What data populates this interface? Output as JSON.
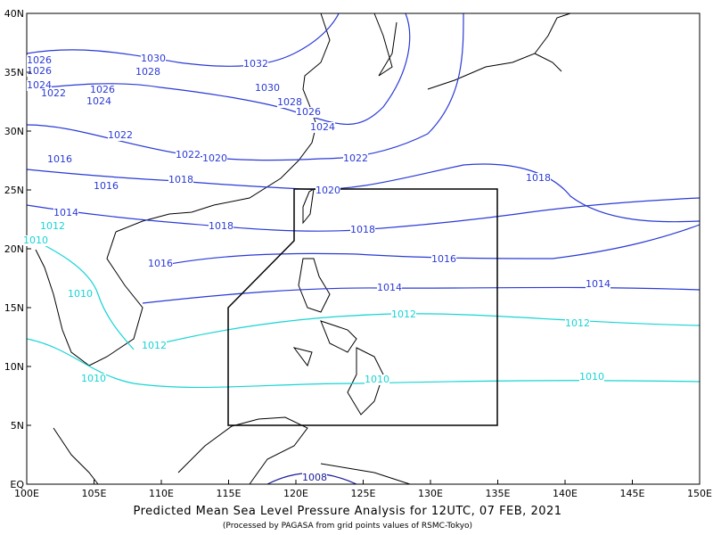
{
  "map": {
    "xlim": [
      100,
      150
    ],
    "xticks": [
      {
        "value": 100,
        "label": "100E"
      },
      {
        "value": 105,
        "label": "105E"
      },
      {
        "value": 110,
        "label": "110E"
      },
      {
        "value": 115,
        "label": "115E"
      },
      {
        "value": 120,
        "label": "120E"
      },
      {
        "value": 125,
        "label": "125E"
      },
      {
        "value": 130,
        "label": "130E"
      },
      {
        "value": 135,
        "label": "135E"
      },
      {
        "value": 140,
        "label": "140E"
      },
      {
        "value": 145,
        "label": "145E"
      },
      {
        "value": 150,
        "label": "150E"
      }
    ],
    "ylim": [
      0,
      40
    ],
    "yticks": [
      {
        "value": 0,
        "label": "EQ"
      },
      {
        "value": 5,
        "label": "5N"
      },
      {
        "value": 10,
        "label": "10N"
      },
      {
        "value": 15,
        "label": "15N"
      },
      {
        "value": 20,
        "label": "20N"
      },
      {
        "value": 25,
        "label": "25N"
      },
      {
        "value": 30,
        "label": "30N"
      },
      {
        "value": 35,
        "label": "35N"
      },
      {
        "value": 40,
        "label": "40N"
      }
    ]
  },
  "isobar_labels": [
    1030,
    1032,
    1026,
    1026,
    1024,
    1022,
    1028,
    1026,
    1024,
    1030,
    1028,
    1026,
    1024,
    1022,
    1022,
    1020,
    1016,
    1022,
    1018,
    1016,
    1020,
    1018,
    1014,
    1012,
    1010,
    1018,
    1018,
    1016,
    1016,
    1014,
    1014,
    1010,
    1012,
    1012,
    1012,
    1010,
    1010,
    1010,
    1008
  ],
  "caption": {
    "title": "Predicted Mean Sea Level Pressure Analysis for 12UTC, 07 FEB, 2021",
    "subtitle": "(Processed by PAGASA from grid points values of RSMC-Tokyo)"
  }
}
